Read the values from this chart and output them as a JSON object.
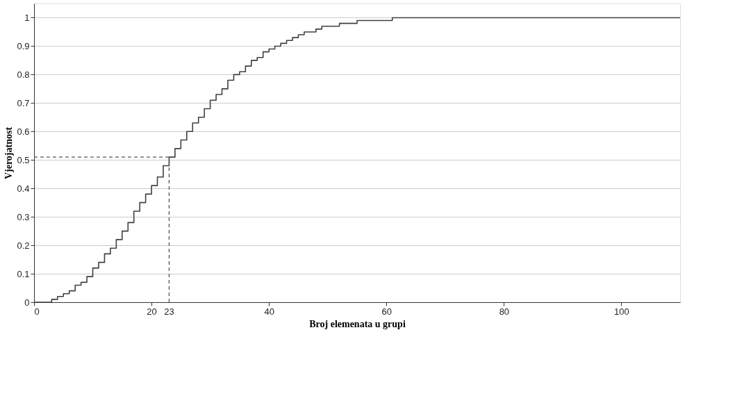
{
  "chart_data": {
    "type": "step",
    "xlabel": "Broj elemenata u grupi",
    "ylabel": "Vjerojatnost",
    "x": [
      0,
      1,
      2,
      3,
      4,
      5,
      6,
      7,
      8,
      9,
      10,
      11,
      12,
      13,
      14,
      15,
      16,
      17,
      18,
      19,
      20,
      21,
      22,
      23,
      24,
      25,
      26,
      27,
      28,
      29,
      30,
      31,
      32,
      33,
      34,
      35,
      36,
      37,
      38,
      39,
      40,
      41,
      42,
      43,
      44,
      45,
      46,
      47,
      48,
      49,
      50,
      51,
      52,
      53,
      54,
      55,
      56,
      57,
      58,
      59,
      60,
      61,
      62,
      63,
      64,
      65,
      66,
      110
    ],
    "series": [
      {
        "color": "#404040",
        "values": [
          0,
          0,
          0,
          0.01,
          0.02,
          0.03,
          0.04,
          0.06,
          0.07,
          0.09,
          0.12,
          0.14,
          0.17,
          0.19,
          0.22,
          0.25,
          0.28,
          0.32,
          0.35,
          0.38,
          0.41,
          0.44,
          0.48,
          0.51,
          0.54,
          0.57,
          0.6,
          0.63,
          0.65,
          0.68,
          0.71,
          0.73,
          0.75,
          0.78,
          0.8,
          0.81,
          0.83,
          0.85,
          0.86,
          0.88,
          0.89,
          0.9,
          0.91,
          0.92,
          0.93,
          0.94,
          0.95,
          0.95,
          0.96,
          0.97,
          0.97,
          0.97,
          0.98,
          0.98,
          0.98,
          0.99,
          0.99,
          0.99,
          0.99,
          0.99,
          0.99,
          1,
          1,
          1,
          1,
          1,
          1,
          1
        ]
      }
    ],
    "xlim": [
      0,
      110
    ],
    "xticks": [
      0,
      20,
      40,
      60,
      80,
      100
    ],
    "ylim": [
      0,
      1.05
    ],
    "yticks": [
      0,
      0.1,
      0.2,
      0.3,
      0.4,
      0.5,
      0.6,
      0.7,
      0.8,
      0.9,
      1
    ],
    "grid": "y",
    "line_style": "solid",
    "marker": "none",
    "ref_lines": [
      {
        "axis": "x",
        "value": 23,
        "label": "23",
        "line_style": "dashed",
        "color": "#555555"
      },
      {
        "axis": "y",
        "value": 0.51,
        "line_style": "dashed",
        "color": "#555555"
      }
    ]
  }
}
